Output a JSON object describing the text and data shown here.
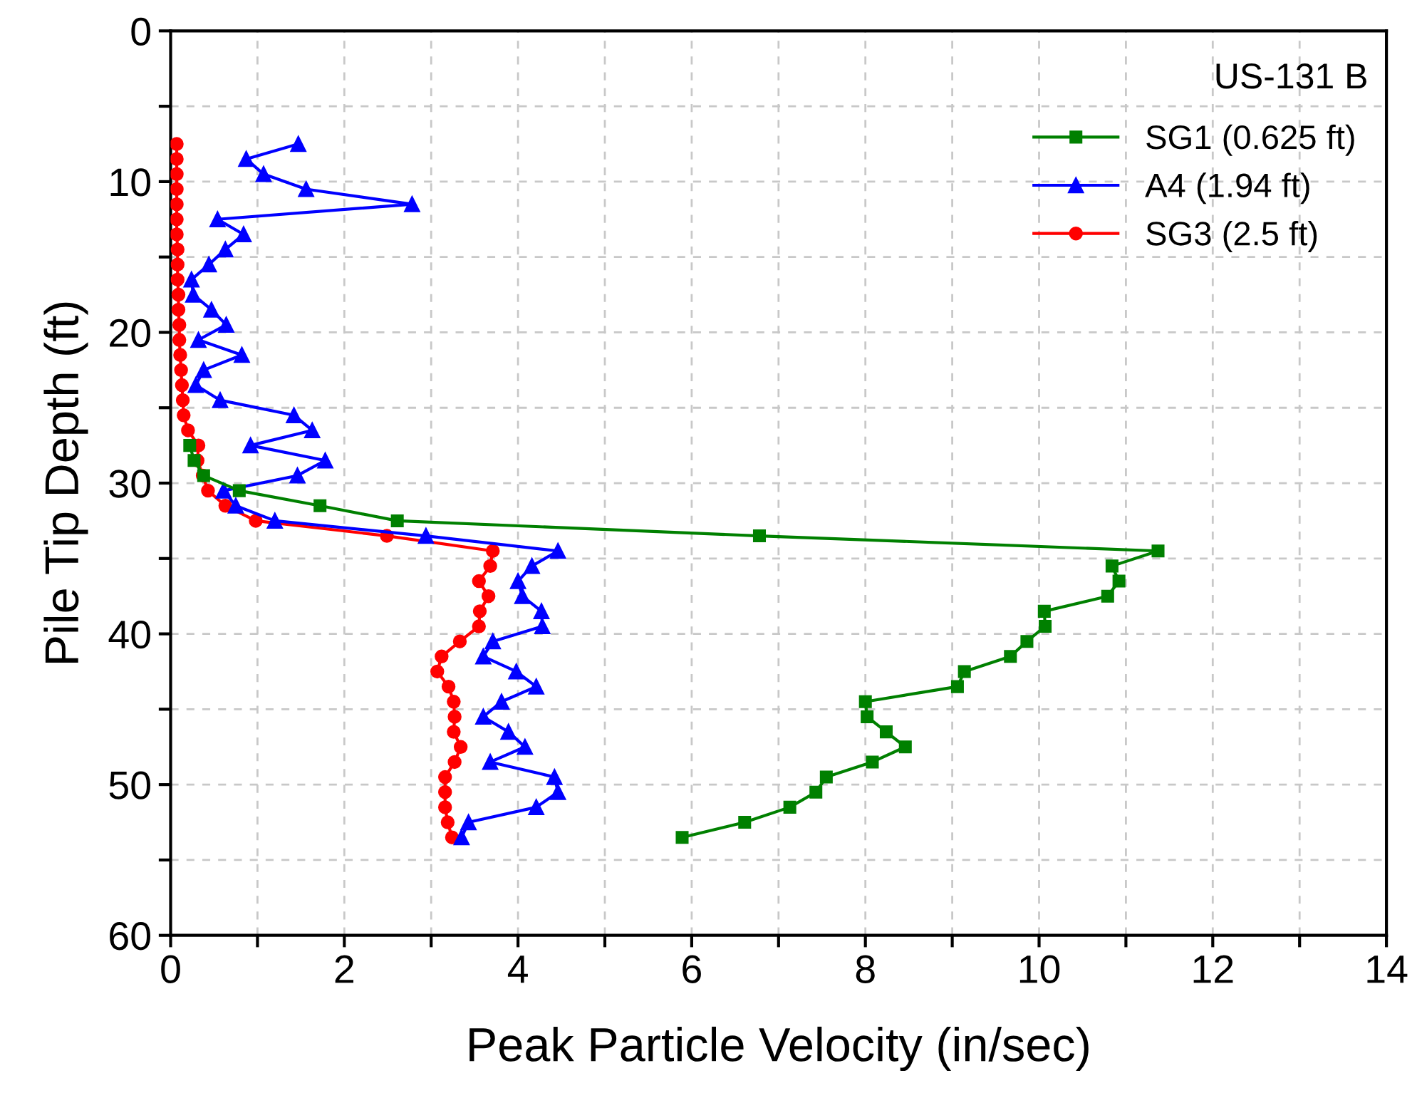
{
  "chart_data": {
    "type": "line",
    "xlabel": "Peak Particle Velocity (in/sec)",
    "ylabel": "Pile Tip Depth (ft)",
    "annotations": [
      "US-131 B"
    ],
    "xlim": [
      0,
      14
    ],
    "ylim": [
      60,
      0
    ],
    "xticks": [
      0,
      {
        "value": 1,
        "label": null
      },
      2,
      {
        "value": 3,
        "label": null
      },
      4,
      {
        "value": 5,
        "label": null
      },
      6,
      {
        "value": 7,
        "label": null
      },
      8,
      {
        "value": 9,
        "label": null
      },
      10,
      {
        "value": 11,
        "label": null
      },
      12,
      {
        "value": 13,
        "label": null
      },
      14
    ],
    "yticks": [
      0,
      {
        "value": 5,
        "label": null
      },
      10,
      {
        "value": 15,
        "label": null
      },
      20,
      {
        "value": 25,
        "label": null
      },
      30,
      {
        "value": 35,
        "label": null
      },
      40,
      {
        "value": 45,
        "label": null
      },
      50,
      {
        "value": 55,
        "label": null
      },
      60
    ],
    "grid": true,
    "legend": "top right",
    "line_style": "solid",
    "series": [
      {
        "name": "SG1 (0.625 ft)",
        "color": "#008000",
        "marker": "square",
        "x": [
          0.22,
          0.27,
          0.38,
          0.79,
          1.72,
          2.61,
          6.78,
          11.37,
          10.84,
          10.92,
          10.79,
          10.06,
          10.07,
          9.86,
          9.67,
          9.14,
          9.06,
          8.0,
          8.02,
          8.24,
          8.46,
          8.08,
          7.55,
          7.43,
          7.13,
          6.61,
          5.89
        ],
        "values": [
          27.5,
          28.5,
          29.5,
          30.5,
          31.5,
          32.5,
          33.5,
          34.5,
          35.5,
          36.5,
          37.5,
          38.5,
          39.5,
          40.5,
          41.5,
          42.5,
          43.5,
          44.5,
          45.5,
          46.5,
          47.5,
          48.5,
          49.5,
          50.5,
          51.5,
          52.5,
          53.5
        ]
      },
      {
        "name": "A4 (1.94 ft)",
        "color": "#0000ff",
        "marker": "triangle",
        "x": [
          1.47,
          0.87,
          1.07,
          1.56,
          2.78,
          0.54,
          0.84,
          0.63,
          0.44,
          0.24,
          0.26,
          0.47,
          0.64,
          0.32,
          0.82,
          0.38,
          0.29,
          0.57,
          1.42,
          1.63,
          0.92,
          1.78,
          1.46,
          0.61,
          0.75,
          1.2,
          2.94,
          4.46,
          4.16,
          4.0,
          4.05,
          4.27,
          4.28,
          3.71,
          3.6,
          3.98,
          4.21,
          3.81,
          3.6,
          3.89,
          4.08,
          3.68,
          4.42,
          4.46,
          4.21,
          3.43,
          3.35
        ],
        "values": [
          7.5,
          8.5,
          9.5,
          10.5,
          11.5,
          12.5,
          13.5,
          14.5,
          15.5,
          16.5,
          17.5,
          18.5,
          19.5,
          20.5,
          21.5,
          22.5,
          23.5,
          24.5,
          25.5,
          26.5,
          27.5,
          28.5,
          29.5,
          30.5,
          31.5,
          32.5,
          33.5,
          34.5,
          35.5,
          36.5,
          37.5,
          38.5,
          39.5,
          40.5,
          41.5,
          42.5,
          43.5,
          44.5,
          45.5,
          46.5,
          47.5,
          48.5,
          49.5,
          50.5,
          51.5,
          52.5,
          53.5
        ]
      },
      {
        "name": "SG3 (2.5 ft)",
        "color": "#ff0000",
        "marker": "circle",
        "x": [
          0.07,
          0.07,
          0.07,
          0.07,
          0.07,
          0.07,
          0.07,
          0.08,
          0.08,
          0.08,
          0.09,
          0.09,
          0.1,
          0.1,
          0.11,
          0.12,
          0.13,
          0.14,
          0.15,
          0.2,
          0.32,
          0.31,
          0.37,
          0.43,
          0.63,
          0.98,
          2.49,
          3.71,
          3.68,
          3.55,
          3.66,
          3.56,
          3.55,
          3.33,
          3.12,
          3.07,
          3.2,
          3.26,
          3.27,
          3.26,
          3.34,
          3.27,
          3.16,
          3.16,
          3.16,
          3.19,
          3.24
        ],
        "values": [
          7.5,
          8.5,
          9.5,
          10.5,
          11.5,
          12.5,
          13.5,
          14.5,
          15.5,
          16.5,
          17.5,
          18.5,
          19.5,
          20.5,
          21.5,
          22.5,
          23.5,
          24.5,
          25.5,
          26.5,
          27.5,
          28.5,
          29.5,
          30.5,
          31.5,
          32.5,
          33.5,
          34.5,
          35.5,
          36.5,
          37.5,
          38.5,
          39.5,
          40.5,
          41.5,
          42.5,
          43.5,
          44.5,
          45.5,
          46.5,
          47.5,
          48.5,
          49.5,
          50.5,
          51.5,
          52.5,
          53.5
        ]
      }
    ]
  }
}
